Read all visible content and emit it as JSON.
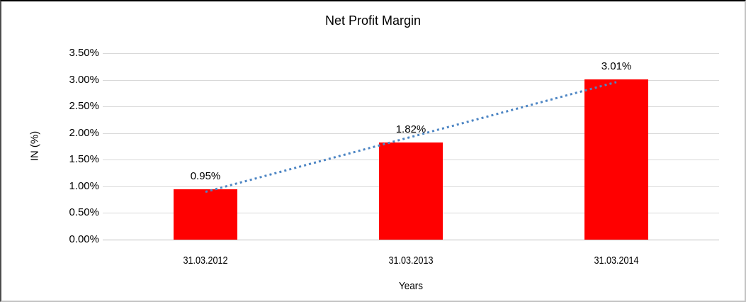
{
  "chart_data": {
    "type": "bar",
    "title": "Net Profit Margin",
    "xlabel": "Years",
    "ylabel": "IN (%)",
    "categories": [
      "31.03.2012",
      "31.03.2013",
      "31.03.2014"
    ],
    "values": [
      0.95,
      1.82,
      3.01
    ],
    "value_labels": [
      "0.95%",
      "1.82%",
      "3.01%"
    ],
    "ylim": [
      0,
      3.5
    ],
    "yticks": [
      {
        "value": 0.0,
        "label": "0.00%"
      },
      {
        "value": 0.5,
        "label": "0.50%"
      },
      {
        "value": 1.0,
        "label": "1.00%"
      },
      {
        "value": 1.5,
        "label": "1.50%"
      },
      {
        "value": 2.0,
        "label": "2.00%"
      },
      {
        "value": 2.5,
        "label": "2.50%"
      },
      {
        "value": 3.0,
        "label": "3.00%"
      },
      {
        "value": 3.5,
        "label": "3.50%"
      }
    ],
    "grid": true,
    "legend": false,
    "bar_color": "#FF0000",
    "gridline_color": "#D9D9D9",
    "axis_line_color": "#BFBFBF",
    "trendline": {
      "type": "linear",
      "style": "dotted",
      "color": "#4E86C4"
    }
  }
}
